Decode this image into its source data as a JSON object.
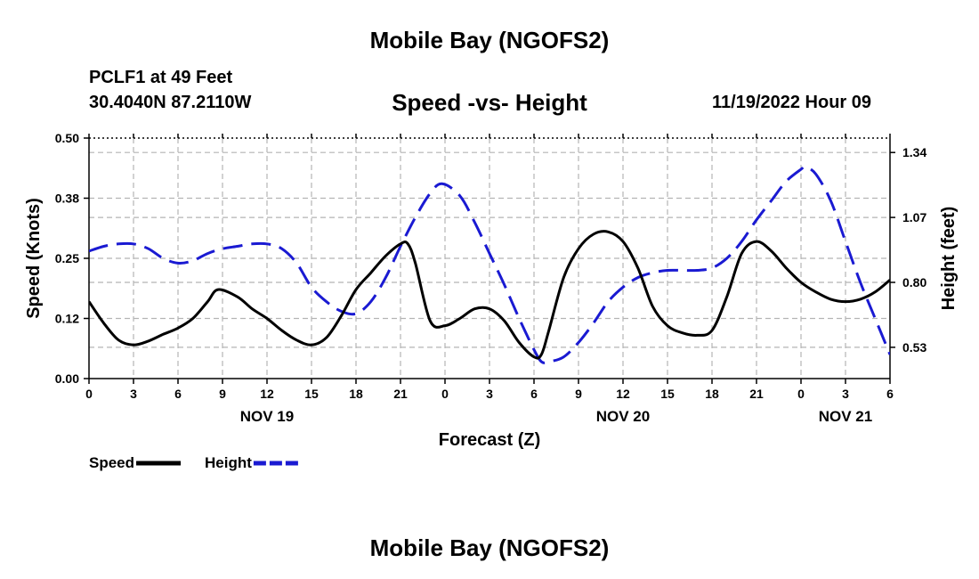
{
  "header": {
    "main_title": "Mobile Bay (NGOFS2)",
    "station": "PCLF1 at 49 Feet",
    "coords": "30.4040N  87.2110W",
    "subtitle": "Speed -vs- Height",
    "datetime": "11/19/2022 Hour 09",
    "bottom_title": "Mobile Bay (NGOFS2)"
  },
  "chart_data": {
    "type": "line",
    "title": "Speed -vs- Height",
    "xlabel": "Forecast (Z)",
    "ylabel": "Speed (Knots)",
    "y2label": "Height (feet)",
    "x_units": "hours from 11/19/2022 00Z",
    "xlim": [
      0,
      54
    ],
    "ylim": [
      0,
      0.5
    ],
    "y2lim": [
      0.4,
      1.4
    ],
    "grid": true,
    "x_ticks": [
      {
        "x": 0,
        "label": "0"
      },
      {
        "x": 3,
        "label": "3"
      },
      {
        "x": 6,
        "label": "6"
      },
      {
        "x": 9,
        "label": "9"
      },
      {
        "x": 12,
        "label": "12"
      },
      {
        "x": 15,
        "label": "15"
      },
      {
        "x": 18,
        "label": "18"
      },
      {
        "x": 21,
        "label": "21"
      },
      {
        "x": 24,
        "label": "0"
      },
      {
        "x": 27,
        "label": "3"
      },
      {
        "x": 30,
        "label": "6"
      },
      {
        "x": 33,
        "label": "9"
      },
      {
        "x": 36,
        "label": "12"
      },
      {
        "x": 39,
        "label": "15"
      },
      {
        "x": 42,
        "label": "18"
      },
      {
        "x": 45,
        "label": "21"
      },
      {
        "x": 48,
        "label": "0"
      },
      {
        "x": 51,
        "label": "3"
      },
      {
        "x": 54,
        "label": "6"
      }
    ],
    "date_labels": [
      {
        "x": 12,
        "label": "NOV 19"
      },
      {
        "x": 36,
        "label": "NOV 20"
      },
      {
        "x": 51,
        "label": "NOV 21"
      }
    ],
    "y_ticks": [
      {
        "value": 0.0,
        "label": "0.00"
      },
      {
        "value": 0.125,
        "label": "0.12"
      },
      {
        "value": 0.25,
        "label": "0.25"
      },
      {
        "value": 0.375,
        "label": "0.38"
      },
      {
        "value": 0.5,
        "label": "0.50"
      }
    ],
    "y2_ticks": [
      {
        "value": 0.53,
        "label": "0.53"
      },
      {
        "value": 0.8,
        "label": "0.80"
      },
      {
        "value": 1.07,
        "label": "1.07"
      },
      {
        "value": 1.34,
        "label": "1.34"
      }
    ],
    "series": [
      {
        "name": "Speed",
        "axis": "left",
        "color": "#000000",
        "style": "solid",
        "x": [
          0,
          1,
          2,
          3,
          4,
          5,
          6,
          7,
          8,
          8.7,
          10,
          11,
          12,
          13,
          14,
          15,
          16,
          17,
          18,
          19,
          20,
          21,
          21.5,
          22,
          23,
          24,
          25,
          26,
          27,
          28,
          29,
          30,
          30.5,
          31,
          32,
          33,
          34,
          35,
          36,
          37,
          38,
          39,
          40,
          41,
          42,
          43,
          44,
          45,
          46,
          47,
          48,
          49,
          50,
          51,
          52,
          53,
          54
        ],
        "values": [
          0.16,
          0.115,
          0.08,
          0.07,
          0.078,
          0.092,
          0.105,
          0.125,
          0.16,
          0.185,
          0.17,
          0.145,
          0.125,
          0.1,
          0.08,
          0.07,
          0.085,
          0.13,
          0.185,
          0.22,
          0.255,
          0.28,
          0.28,
          0.24,
          0.12,
          0.11,
          0.125,
          0.145,
          0.145,
          0.12,
          0.075,
          0.045,
          0.05,
          0.1,
          0.21,
          0.27,
          0.3,
          0.305,
          0.285,
          0.23,
          0.15,
          0.11,
          0.095,
          0.09,
          0.1,
          0.17,
          0.26,
          0.285,
          0.265,
          0.23,
          0.2,
          0.18,
          0.165,
          0.16,
          0.165,
          0.18,
          0.205
        ]
      },
      {
        "name": "Height",
        "axis": "right",
        "color": "#1a1ad2",
        "style": "dashed",
        "x": [
          0,
          1,
          2,
          3,
          4,
          5,
          6,
          7,
          8,
          9,
          10,
          11,
          12,
          13,
          14,
          15,
          16,
          17,
          18,
          19,
          20,
          21,
          22,
          23,
          23.8,
          25,
          26,
          27,
          28,
          29,
          30,
          30.5,
          31,
          32,
          33,
          34,
          35,
          36,
          37,
          38,
          39,
          40,
          41,
          42,
          43,
          44,
          45,
          46,
          47,
          48,
          48.3,
          49,
          50,
          51,
          52,
          53,
          54
        ],
        "values": [
          0.93,
          0.95,
          0.96,
          0.96,
          0.94,
          0.9,
          0.88,
          0.89,
          0.92,
          0.94,
          0.95,
          0.96,
          0.96,
          0.94,
          0.88,
          0.78,
          0.72,
          0.68,
          0.67,
          0.72,
          0.82,
          0.95,
          1.07,
          1.17,
          1.21,
          1.16,
          1.05,
          0.92,
          0.79,
          0.65,
          0.52,
          0.47,
          0.47,
          0.49,
          0.55,
          0.63,
          0.72,
          0.78,
          0.82,
          0.84,
          0.85,
          0.85,
          0.85,
          0.86,
          0.9,
          0.97,
          1.06,
          1.14,
          1.22,
          1.27,
          1.28,
          1.25,
          1.14,
          0.97,
          0.8,
          0.65,
          0.5
        ]
      }
    ],
    "legend": [
      {
        "label": "Speed",
        "color": "#000000",
        "style": "solid"
      },
      {
        "label": "Height",
        "color": "#1a1ad2",
        "style": "dashed"
      }
    ]
  }
}
